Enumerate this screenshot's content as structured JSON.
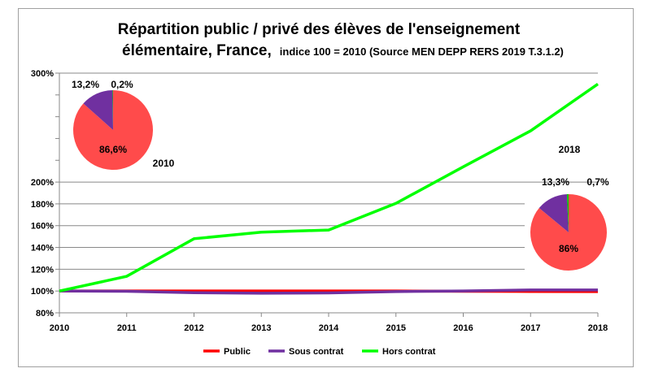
{
  "chart_data": {
    "type": "line",
    "title_line1": "Répartition  public / privé des élèves de l'enseignement",
    "title_line2_main": "élémentaire,   France,",
    "title_line2_sub": "indice 100 = 2010 (Source MEN DEPP RERS 2019 T.3.1.2)",
    "x": [
      "2010",
      "2011",
      "2012",
      "2013",
      "2014",
      "2015",
      "2016",
      "2017",
      "2018"
    ],
    "ylim": [
      80,
      300
    ],
    "yticks": [
      "80%",
      "100%",
      "120%",
      "140%",
      "160%",
      "180%",
      "200%",
      "300%"
    ],
    "ytick_values": [
      80,
      100,
      120,
      140,
      160,
      180,
      200,
      300
    ],
    "minor_ticks": [
      220,
      240,
      260,
      280
    ],
    "grid": true,
    "legend_position": "bottom",
    "series": [
      {
        "name": "Public",
        "color": "#ff0000",
        "values": [
          100,
          100,
          100,
          100,
          100,
          100,
          99.8,
          99.6,
          99.5
        ]
      },
      {
        "name": "Sous contrat",
        "color": "#7030a0",
        "values": [
          100,
          99.8,
          98.5,
          98,
          98.3,
          99.5,
          100,
          101,
          101
        ]
      },
      {
        "name": "Hors contrat",
        "color": "#00ff00",
        "values": [
          100,
          113.5,
          148,
          154,
          156,
          180.5,
          214,
          247,
          290
        ]
      }
    ],
    "pies": [
      {
        "label": "2010",
        "slices": [
          {
            "name": "Public",
            "value": 86.6,
            "text": "86,6%",
            "color": "#ff4b4b"
          },
          {
            "name": "Sous contrat",
            "value": 13.2,
            "text": "13,2%",
            "color": "#7030a0"
          },
          {
            "name": "Hors contrat",
            "value": 0.2,
            "text": "0,2%",
            "color": "#00cc00"
          }
        ]
      },
      {
        "label": "2018",
        "slices": [
          {
            "name": "Public",
            "value": 86,
            "text": "86%",
            "color": "#ff4b4b"
          },
          {
            "name": "Sous contrat",
            "value": 13.3,
            "text": "13,3%",
            "color": "#7030a0"
          },
          {
            "name": "Hors contrat",
            "value": 0.7,
            "text": "0,7%",
            "color": "#00cc00"
          }
        ]
      }
    ]
  }
}
